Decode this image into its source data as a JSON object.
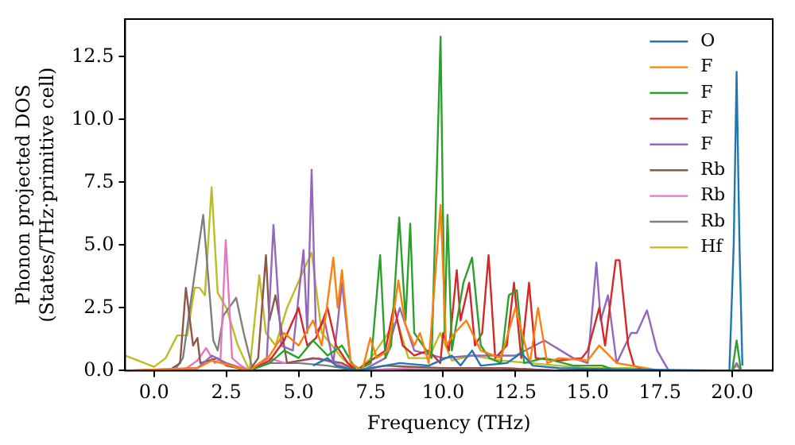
{
  "chart_data": {
    "type": "line",
    "xlabel": "Frequency (THz)",
    "ylabel": "Phonon projected DOS\n(States/THz·primitive cell)",
    "xlim": [
      -1,
      21.4
    ],
    "ylim": [
      0,
      14
    ],
    "xticks": [
      {
        "value": 0,
        "label": "0.0"
      },
      {
        "value": 2.5,
        "label": "2.5"
      },
      {
        "value": 5,
        "label": "5.0"
      },
      {
        "value": 7.5,
        "label": "7.5"
      },
      {
        "value": 10,
        "label": "10.0"
      },
      {
        "value": 12.5,
        "label": "12.5"
      },
      {
        "value": 15,
        "label": "15.0"
      },
      {
        "value": 17.5,
        "label": "17.5"
      },
      {
        "value": 20,
        "label": "20.0"
      }
    ],
    "yticks": [
      {
        "value": 0,
        "label": "0.0"
      },
      {
        "value": 2.5,
        "label": "2.5"
      },
      {
        "value": 5,
        "label": "5.0"
      },
      {
        "value": 7.5,
        "label": "7.5"
      },
      {
        "value": 10,
        "label": "10.0"
      },
      {
        "value": 12.5,
        "label": "12.5"
      }
    ],
    "grid": false,
    "legend": "top right",
    "marker": "none",
    "line_style": "solid",
    "series": [
      {
        "name": "O",
        "color": "#1f77b4",
        "x": [
          5.5,
          6,
          6.3,
          7,
          8.5,
          9.5,
          10.3,
          10.6,
          11,
          11.3,
          12.2,
          12.7,
          13.1,
          14,
          16,
          19.9,
          20.05,
          20.15,
          20.25,
          20.35
        ],
        "values": [
          0.2,
          0.5,
          0.2,
          0,
          0.3,
          0.2,
          0.6,
          0.2,
          0.8,
          0.2,
          0.3,
          0.7,
          0.2,
          0.1,
          0.05,
          0,
          5,
          11.9,
          5,
          0.2
        ]
      },
      {
        "name": "F",
        "color": "#ff7f0e",
        "x": [
          -1,
          1.5,
          2,
          3.3,
          4,
          4.5,
          5,
          5.5,
          5.8,
          6.2,
          6.35,
          6.5,
          6.8,
          7.2,
          7.48,
          7.7,
          8.1,
          8.45,
          8.7,
          9,
          9.2,
          9.5,
          9.91,
          10.1,
          10.4,
          10.8,
          11.3,
          12,
          12.5,
          13,
          13.28,
          13.6,
          14,
          15,
          15.4,
          16,
          17,
          17.5
        ],
        "values": [
          0,
          0.1,
          0.4,
          0,
          0.6,
          1.5,
          1,
          2,
          1,
          4.5,
          2.5,
          4,
          0.3,
          0,
          1.3,
          0.5,
          0.8,
          3.6,
          1.8,
          1,
          1.5,
          0.3,
          6.6,
          1,
          1.5,
          2,
          0.8,
          0.5,
          2.5,
          0.3,
          2.5,
          0.3,
          0.5,
          0.4,
          1,
          0.3,
          0.1,
          0
        ]
      },
      {
        "name": "F",
        "color": "#2ca02c",
        "x": [
          -1,
          3.3,
          4,
          4.5,
          5,
          5.5,
          6,
          6.5,
          7,
          7.5,
          7.82,
          8,
          8.2,
          8.48,
          8.7,
          8.86,
          9,
          9.3,
          9.6,
          9.91,
          10.05,
          10.15,
          10.3,
          10.7,
          11,
          11.3,
          11.6,
          12,
          12.27,
          12.55,
          12.8,
          13.5,
          14.5,
          15.5,
          16,
          20,
          20.15,
          20.3
        ],
        "values": [
          0,
          0,
          0.3,
          0.8,
          0.5,
          1.2,
          0.6,
          1,
          0,
          0.3,
          4.6,
          0.5,
          1,
          6.1,
          2,
          5.85,
          1.5,
          1,
          0.5,
          13.3,
          1.5,
          6.2,
          0.8,
          3.5,
          4.5,
          1,
          0.5,
          0.3,
          3,
          3.2,
          0.3,
          0.5,
          0.2,
          0.2,
          0,
          0,
          1.2,
          0
        ]
      },
      {
        "name": "F",
        "color": "#d62728",
        "x": [
          -1,
          3.3,
          4,
          4.5,
          5,
          5.3,
          5.6,
          6,
          6.3,
          6.7,
          7,
          7.5,
          8,
          8.3,
          8.6,
          9,
          9.5,
          9.9,
          10,
          10.2,
          10.47,
          10.6,
          10.9,
          11.1,
          11.35,
          11.57,
          11.8,
          12.2,
          12.45,
          12.7,
          12.97,
          13.2,
          14,
          14.8,
          15,
          15.4,
          15.6,
          15.97,
          16.1,
          16.4,
          16.6,
          17
        ],
        "values": [
          0,
          0,
          0.4,
          1.2,
          2.5,
          1,
          1.3,
          2.5,
          1,
          0.3,
          0,
          0.4,
          0.8,
          2.6,
          1,
          0.6,
          0.8,
          0.3,
          1.5,
          0.8,
          4,
          2,
          3.5,
          1,
          1.5,
          4.6,
          0.5,
          1,
          3.5,
          0.5,
          3.5,
          0.5,
          0.4,
          0.5,
          0.8,
          2.5,
          1,
          4.4,
          4.4,
          1,
          0.2,
          0
        ]
      },
      {
        "name": "F",
        "color": "#9467bd",
        "x": [
          -1,
          1.5,
          2,
          2.5,
          3.3,
          3.9,
          4.13,
          4.4,
          4.8,
          5.17,
          5.3,
          5.45,
          5.6,
          5.9,
          6.2,
          6.5,
          6.8,
          7.2,
          8,
          8.5,
          9,
          10,
          11,
          12.5,
          13.5,
          14.5,
          15,
          15.3,
          15.45,
          15.7,
          16,
          16.5,
          16.7,
          17.05,
          17.4,
          17.8,
          20,
          20.15,
          20.3
        ],
        "values": [
          0,
          0.1,
          0.6,
          0.3,
          0,
          0.5,
          5.8,
          1,
          0.8,
          4.8,
          1.5,
          8,
          1.5,
          2,
          0.3,
          3.5,
          0.3,
          0,
          0.5,
          2.5,
          0.8,
          0.5,
          0.6,
          0.6,
          1.2,
          0.5,
          0.3,
          4.3,
          2,
          3,
          0.3,
          1.5,
          1.5,
          2.4,
          0.8,
          0,
          0,
          0.3,
          0
        ]
      },
      {
        "name": "Rb",
        "color": "#8c564b",
        "x": [
          -1,
          0.5,
          0.9,
          1.1,
          1.35,
          1.5,
          1.6,
          2.2,
          2.5,
          3.3,
          3.6,
          3.87,
          3.99,
          4.2,
          4.6,
          5.5,
          6.5,
          7,
          8,
          10,
          12,
          14
        ],
        "values": [
          0,
          0,
          0.3,
          3.3,
          1,
          1.3,
          0.3,
          0.5,
          0.2,
          0,
          0.5,
          4.6,
          2,
          3,
          0.3,
          0.5,
          0.3,
          0,
          0.2,
          0.1,
          0.1,
          0
        ]
      },
      {
        "name": "Rb",
        "color": "#e377c2",
        "x": [
          -1,
          1,
          1.5,
          1.8,
          2.1,
          2.3,
          2.48,
          2.7,
          3,
          3.3,
          4,
          4.5,
          5.7,
          6.5,
          7,
          9,
          12,
          14
        ],
        "values": [
          0,
          0,
          0.4,
          0.9,
          0.3,
          0.5,
          5.2,
          0.5,
          0.2,
          0,
          0.5,
          0.3,
          0.5,
          0.2,
          0,
          0.1,
          0.1,
          0
        ]
      },
      {
        "name": "Rb",
        "color": "#7f7f7f",
        "x": [
          -1,
          0.7,
          1,
          1.3,
          1.7,
          2.05,
          2.2,
          2.4,
          2.84,
          3.1,
          3.4,
          4,
          5,
          6,
          7,
          9,
          12,
          14
        ],
        "values": [
          0,
          0,
          0.5,
          3,
          6.2,
          1.2,
          0.8,
          2.2,
          2.9,
          1.5,
          0.1,
          0.3,
          0.3,
          0.2,
          0,
          0.1,
          0.1,
          0
        ]
      },
      {
        "name": "Hf",
        "color": "#bcbd22",
        "x": [
          -1,
          0,
          0.4,
          0.8,
          1.15,
          1.4,
          1.57,
          1.76,
          1.99,
          2.2,
          2.5,
          2.9,
          3.3,
          3.64,
          3.87,
          4.2,
          4.6,
          5.17,
          5.45,
          5.8,
          6.5,
          7,
          7.5,
          8.4,
          8.8,
          9.5,
          9.9,
          10.3,
          11,
          12,
          13,
          14,
          15,
          16.5,
          17.5,
          20,
          20.15,
          20.3
        ],
        "values": [
          0.6,
          0.15,
          0.5,
          1.4,
          1.4,
          3.3,
          3.3,
          3,
          7.3,
          3.1,
          2.5,
          1,
          0,
          3.8,
          1.5,
          1,
          2.5,
          4,
          4.7,
          1.5,
          0.5,
          0,
          0.5,
          2,
          0.5,
          0.5,
          1.5,
          0.4,
          0.6,
          0.4,
          0.3,
          0.2,
          0.1,
          0.1,
          0,
          0,
          0.2,
          0
        ]
      }
    ]
  }
}
